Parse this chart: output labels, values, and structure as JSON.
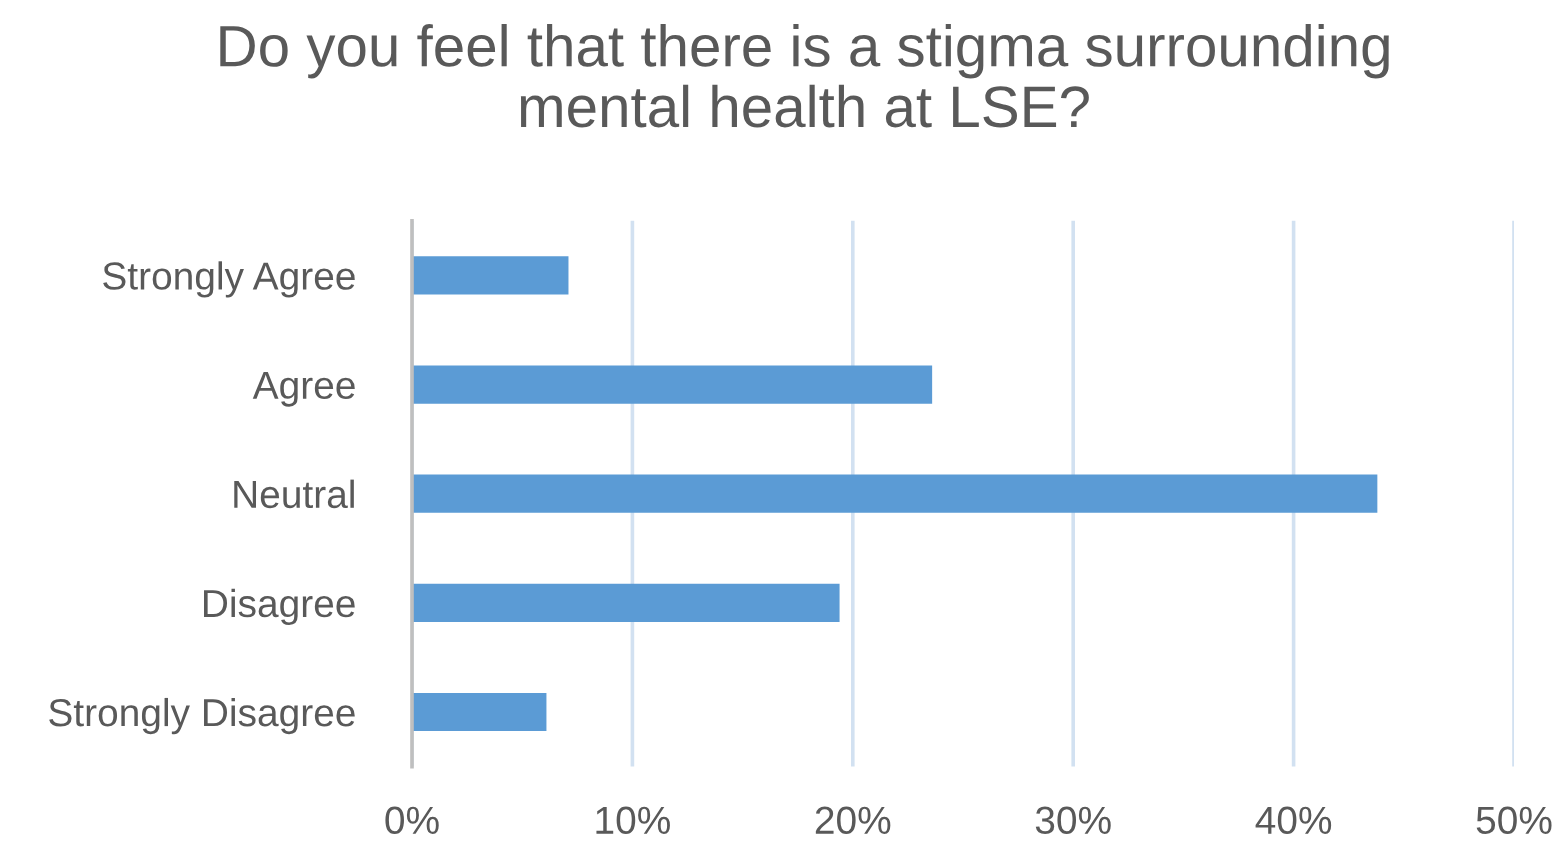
{
  "chart_data": {
    "type": "bar",
    "orientation": "horizontal",
    "title": "Do you feel that there is a stigma surrounding\nmental health at LSE?",
    "categories": [
      "Strongly Agree",
      "Agree",
      "Neutral",
      "Disagree",
      "Strongly Disagree"
    ],
    "values": [
      7.1,
      23.6,
      43.8,
      19.4,
      6.1
    ],
    "color": "#5b9bd5",
    "xlim": [
      0,
      50
    ],
    "xticks": [
      {
        "value": 0,
        "label": "0%"
      },
      {
        "value": 10,
        "label": "10%"
      },
      {
        "value": 20,
        "label": "20%"
      },
      {
        "value": 30,
        "label": "30%"
      },
      {
        "value": 40,
        "label": "40%"
      },
      {
        "value": 50,
        "label": "50%"
      }
    ],
    "grid": "x"
  }
}
